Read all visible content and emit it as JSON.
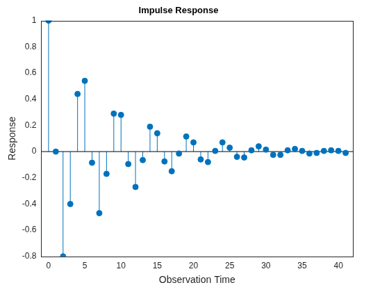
{
  "chart_data": {
    "type": "stem",
    "title": "Impulse Response",
    "x_label": "Observation Time",
    "y_label": "Response",
    "x": [
      0,
      1,
      2,
      3,
      4,
      5,
      6,
      7,
      8,
      9,
      10,
      11,
      12,
      13,
      14,
      15,
      16,
      17,
      18,
      19,
      20,
      21,
      22,
      23,
      24,
      25,
      26,
      27,
      28,
      29,
      30,
      31,
      32,
      33,
      34,
      35,
      36,
      37,
      38,
      39,
      40,
      41
    ],
    "values": [
      1,
      0,
      -0.8,
      -0.4,
      0.44,
      0.54,
      -0.085,
      -0.47,
      -0.17,
      0.29,
      0.28,
      -0.095,
      -0.27,
      -0.065,
      0.19,
      0.14,
      -0.075,
      -0.15,
      -0.015,
      0.115,
      0.07,
      -0.06,
      -0.08,
      0.005,
      0.07,
      0.03,
      -0.04,
      -0.045,
      0.01,
      0.04,
      0.015,
      -0.025,
      -0.025,
      0.01,
      0.02,
      0.005,
      -0.015,
      -0.01,
      0.005,
      0.01,
      0.005,
      -0.01
    ],
    "color": "#0072bd",
    "marker": "circle",
    "line_style": "solid",
    "xlim": [
      -1,
      42
    ],
    "xticks": [
      0,
      5,
      10,
      15,
      20,
      25,
      30,
      35,
      40
    ],
    "ylim": [
      -0.8,
      1
    ],
    "yticks": [
      -0.8,
      -0.6,
      -0.4,
      -0.2,
      0,
      0.2,
      0.4,
      0.6,
      0.8,
      1
    ],
    "grid": false
  }
}
